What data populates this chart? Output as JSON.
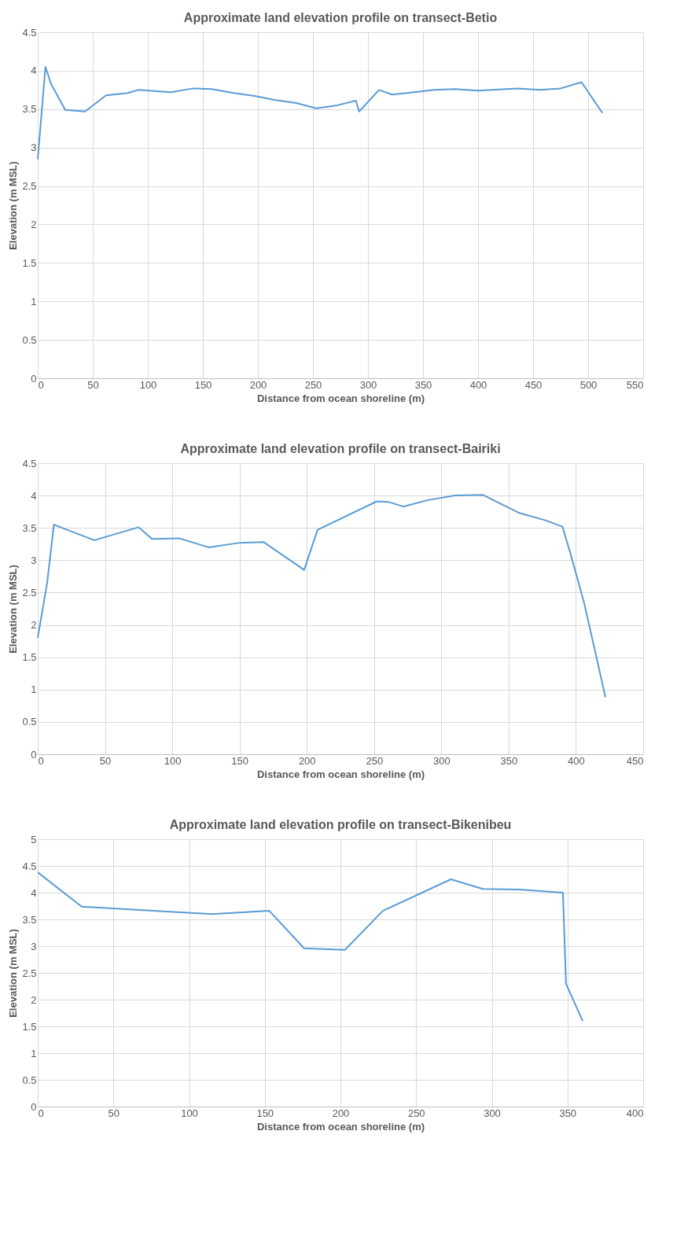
{
  "chart_data": [
    {
      "type": "line",
      "title": "Approximate land elevation profile on transect-Betio",
      "xlabel": "Distance from ocean shoreline (m)",
      "ylabel": "Elevation (m MSL)",
      "grid": true,
      "marker": "none",
      "line_style": "solid",
      "xlim": [
        0,
        550
      ],
      "xticks": [
        0,
        50,
        100,
        150,
        200,
        250,
        300,
        350,
        400,
        450,
        500,
        550
      ],
      "ylim": [
        0,
        4.5
      ],
      "yticks": [
        0,
        0.5,
        1,
        1.5,
        2,
        2.5,
        3,
        3.5,
        4,
        4.5
      ],
      "series": [
        {
          "color": "#5b9bd5",
          "x": [
            0,
            7,
            12,
            25,
            43,
            62,
            82,
            91,
            121,
            141,
            158,
            178,
            198,
            215,
            235,
            253,
            272,
            289,
            292,
            310,
            322,
            342,
            360,
            379,
            400,
            436,
            456,
            475,
            494,
            513
          ],
          "values": [
            2.85,
            4.05,
            3.83,
            3.49,
            3.47,
            3.68,
            3.71,
            3.75,
            3.72,
            3.77,
            3.76,
            3.71,
            3.67,
            3.62,
            3.58,
            3.51,
            3.55,
            3.61,
            3.47,
            3.75,
            3.69,
            3.72,
            3.75,
            3.76,
            3.74,
            3.77,
            3.75,
            3.77,
            3.85,
            3.45
          ]
        }
      ]
    },
    {
      "type": "line",
      "title": "Approximate land elevation profile on transect-Bairiki",
      "xlabel": "Distance from ocean shoreline (m)",
      "ylabel": "Elevation (m MSL)",
      "grid": true,
      "marker": "none",
      "line_style": "solid",
      "xlim": [
        0,
        450
      ],
      "xticks": [
        0,
        50,
        100,
        150,
        200,
        250,
        300,
        350,
        400,
        450
      ],
      "ylim": [
        0,
        4.5
      ],
      "yticks": [
        0,
        0.5,
        1,
        1.5,
        2,
        2.5,
        3,
        3.5,
        4,
        4.5
      ],
      "series": [
        {
          "color": "#5b9bd5",
          "x": [
            0,
            7,
            12,
            42,
            75,
            85,
            105,
            127,
            150,
            168,
            198,
            208,
            252,
            261,
            272,
            290,
            310,
            331,
            358,
            377,
            390,
            396,
            406,
            422
          ],
          "values": [
            1.8,
            2.65,
            3.55,
            3.31,
            3.51,
            3.33,
            3.34,
            3.2,
            3.27,
            3.28,
            2.85,
            3.47,
            3.91,
            3.9,
            3.83,
            3.93,
            4.0,
            4.01,
            3.73,
            3.62,
            3.52,
            3.1,
            2.35,
            0.88
          ]
        }
      ]
    },
    {
      "type": "line",
      "title": "Approximate land elevation profile on transect-Bikenibeu",
      "xlabel": "Distance from ocean shoreline (m)",
      "ylabel": "Elevation (m MSL)",
      "grid": true,
      "marker": "none",
      "line_style": "solid",
      "xlim": [
        0,
        400
      ],
      "xticks": [
        0,
        50,
        100,
        150,
        200,
        250,
        300,
        350,
        400
      ],
      "ylim": [
        0,
        5
      ],
      "yticks": [
        0,
        0.5,
        1,
        1.5,
        2,
        2.5,
        3,
        3.5,
        4,
        4.5,
        5
      ],
      "series": [
        {
          "color": "#5b9bd5",
          "x": [
            0,
            29,
            115,
            153,
            176,
            203,
            228,
            273,
            294,
            318,
            347,
            349,
            360
          ],
          "values": [
            4.38,
            3.74,
            3.6,
            3.66,
            2.96,
            2.93,
            3.66,
            4.25,
            4.07,
            4.06,
            4.0,
            2.3,
            1.6
          ]
        }
      ]
    }
  ]
}
